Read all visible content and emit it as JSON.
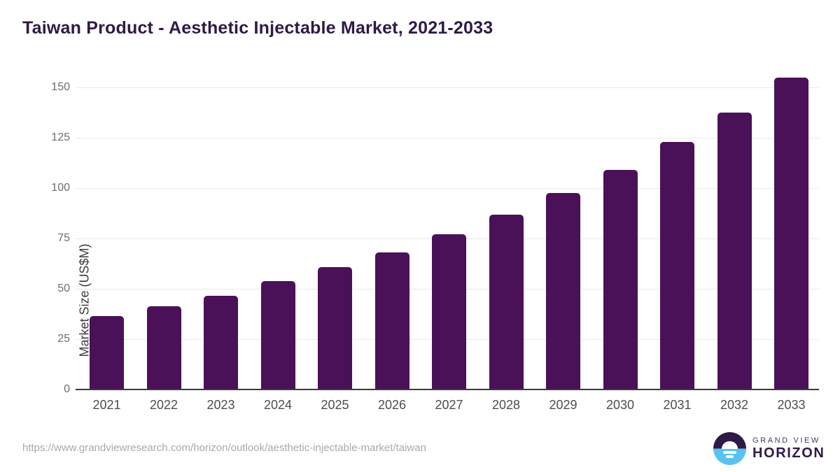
{
  "header": {
    "title": "Taiwan Product - Aesthetic Injectable Market, 2021-2033"
  },
  "chart_data": {
    "type": "bar",
    "title": "Taiwan Product - Aesthetic Injectable Market, 2021-2033",
    "categories": [
      "2021",
      "2022",
      "2023",
      "2024",
      "2025",
      "2026",
      "2027",
      "2028",
      "2029",
      "2030",
      "2031",
      "2032",
      "2033"
    ],
    "values": [
      36.4,
      41.5,
      46.7,
      53.9,
      60.7,
      68.2,
      77.1,
      86.7,
      97.6,
      109.1,
      122.8,
      137.6,
      154.9
    ],
    "xlabel": "",
    "ylabel": "Market Size (US$M)",
    "ylim": [
      0,
      158.7
    ],
    "yticks": [
      0,
      25,
      50,
      75,
      100,
      125,
      150
    ],
    "grid": true,
    "legend": "none",
    "bar_color": "#4A1158"
  },
  "colors": {
    "title": "#2E1A47",
    "bar": "#4A1158",
    "gridline": "#e9e9e9",
    "axis_line": "#3a3a3a",
    "logo_blue": "#58C3F0",
    "logo_purple": "#2E1A47"
  },
  "footer": {
    "source_url": "https://www.grandviewresearch.com/horizon/outlook/aesthetic-injectable-market/taiwan",
    "logo": {
      "line1": "GRAND VIEW",
      "line2": "HORIZON"
    }
  }
}
